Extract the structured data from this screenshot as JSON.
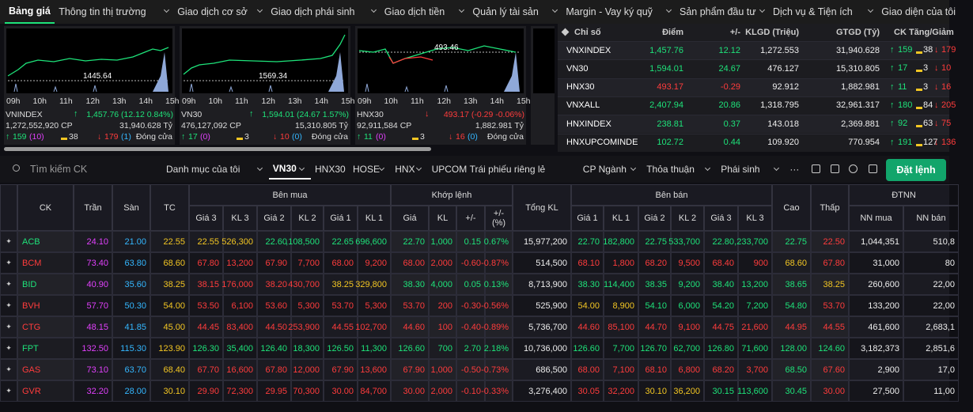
{
  "nav": [
    "Bảng giá",
    "Thông tin thị trường",
    "Giao dịch cơ sở",
    "Giao dịch phái sinh",
    "Giao dịch tiền",
    "Quản lý tài sản",
    "Margin - Vay ký quỹ",
    "Sản phẩm đầu tư",
    "Dịch vụ & Tiện ích",
    "Giao diện của tôi"
  ],
  "hours": [
    "09h",
    "10h",
    "11h",
    "12h",
    "13h",
    "14h",
    "15h"
  ],
  "panels": [
    {
      "name": "VNINDEX",
      "value": "1,457.76 (12.12 0.84%)",
      "dir": "up",
      "volume": "1,272,552,920 CP",
      "traded": "31,940.628 Tỷ",
      "up": "159",
      "ceil": "(10)",
      "flat": "38",
      "down": "179",
      "floor": "(1)",
      "status": "Đóng cửa",
      "ref": "1445.64"
    },
    {
      "name": "VN30",
      "value": "1,594.01 (24.67 1.57%)",
      "dir": "up",
      "volume": "476,127,092 CP",
      "traded": "15,310.805 Tỷ",
      "up": "17",
      "ceil": "(0)",
      "flat": "3",
      "down": "10",
      "floor": "(0)",
      "status": "Đóng cửa",
      "ref": "1569.34"
    },
    {
      "name": "HNX30",
      "value": "493.17 (-0.29 -0.06%)",
      "dir": "down",
      "volume": "92,911,584 CP",
      "traded": "1,882.981 Tỷ",
      "up": "11",
      "ceil": "(0)",
      "flat": "3",
      "down": "16",
      "floor": "(0)",
      "status": "Đóng cửa",
      "ref": "493.46"
    }
  ],
  "indices": {
    "header": [
      "Chỉ số",
      "Điểm",
      "+/-",
      "KLGD (Triệu)",
      "GTGD (Tỷ)",
      "CK Tăng/Giảm"
    ],
    "rows": [
      [
        "VNXINDEX",
        "1,457.76",
        "12.12",
        "1,272.553",
        "31,940.628",
        "159",
        "38",
        "179"
      ],
      [
        "VN30",
        "1,594.01",
        "24.67",
        "476.127",
        "15,310.805",
        "17",
        "3",
        "10"
      ],
      [
        "HNX30",
        "493.17",
        "-0.29",
        "92.912",
        "1,882.981",
        "11",
        "3",
        "16"
      ],
      [
        "VNXALL",
        "2,407.94",
        "20.86",
        "1,318.795",
        "32,961.317",
        "180",
        "84",
        "205"
      ],
      [
        "HNXINDEX",
        "238.81",
        "0.37",
        "143.018",
        "2,369.881",
        "92",
        "63",
        "75"
      ],
      [
        "HNXUPCOMINDE",
        "102.72",
        "0.44",
        "109.920",
        "770.954",
        "191",
        "127",
        "136"
      ]
    ]
  },
  "toolbar": {
    "search": "Tìm kiếm CK",
    "tabs": [
      "Danh mục của tôi",
      "VN30",
      "HNX30",
      "HOSE",
      "HNX",
      "UPCOM",
      "Trái phiếu riêng lẻ",
      "CP Ngành",
      "Thỏa thuận",
      "Phái sinh",
      "···"
    ],
    "active": "VN30",
    "order": "Đặt lệnh"
  },
  "table": {
    "headers": {
      "ck": "CK",
      "ceil": "Trần",
      "floor": "Sàn",
      "ref": "TC",
      "bid": "Bên mua",
      "bidCols": [
        "Giá 3",
        "KL 3",
        "Giá 2",
        "KL 2",
        "Giá 1",
        "KL 1"
      ],
      "match": "Khớp lệnh",
      "matchCols": [
        "Giá",
        "KL",
        "+/-",
        "+/-\n(%)"
      ],
      "total": "Tổng KL",
      "ask": "Bên bán",
      "askCols": [
        "Giá 1",
        "KL 1",
        "Giá 2",
        "KL 2",
        "Giá 3",
        "KL 3"
      ],
      "high": "Cao",
      "low": "Thấp",
      "foreign": "ĐTNN",
      "foreignCols": [
        "NN mua",
        "NN bán"
      ]
    },
    "rows": [
      {
        "ck": "ACB",
        "ceil": "24.10",
        "floor": "21.00",
        "ref": "22.55",
        "bid": [
          "22.55",
          "526,300",
          "22.60",
          ",108,500",
          "22.65",
          "696,600"
        ],
        "match": [
          "22.70",
          "1,000",
          "0.15",
          "0.67%"
        ],
        "total": "15,977,200",
        "ask": [
          "22.70",
          "182,800",
          "22.75",
          "533,700",
          "22.80",
          ",233,700"
        ],
        "high": "22.75",
        "low": "22.50",
        "foreign": [
          "1,044,351",
          "510,8"
        ]
      },
      {
        "ck": "BCM",
        "ceil": "73.40",
        "floor": "63.80",
        "ref": "68.60",
        "bid": [
          "67.80",
          "13,200",
          "67.90",
          "7,700",
          "68.00",
          "9,200"
        ],
        "match": [
          "68.00",
          "2,000",
          "-0.60",
          "-0.87%"
        ],
        "total": "514,500",
        "ask": [
          "68.10",
          "1,800",
          "68.20",
          "9,500",
          "68.40",
          "900"
        ],
        "high": "68.60",
        "low": "67.80",
        "foreign": [
          "31,000",
          "80"
        ]
      },
      {
        "ck": "BID",
        "ceil": "40.90",
        "floor": "35.60",
        "ref": "38.25",
        "bid": [
          "38.15",
          "176,000",
          "38.20",
          "430,700",
          "38.25",
          "329,800"
        ],
        "match": [
          "38.30",
          "4,000",
          "0.05",
          "0.13%"
        ],
        "total": "8,713,900",
        "ask": [
          "38.30",
          "114,400",
          "38.35",
          "9,200",
          "38.40",
          "13,200"
        ],
        "high": "38.65",
        "low": "38.25",
        "foreign": [
          "260,600",
          "22,00"
        ]
      },
      {
        "ck": "BVH",
        "ceil": "57.70",
        "floor": "50.30",
        "ref": "54.00",
        "bid": [
          "53.50",
          "6,100",
          "53.60",
          "5,300",
          "53.70",
          "5,300"
        ],
        "match": [
          "53.70",
          "200",
          "-0.30",
          "-0.56%"
        ],
        "total": "525,900",
        "ask": [
          "54.00",
          "8,900",
          "54.10",
          "6,000",
          "54.20",
          "7,200"
        ],
        "high": "54.80",
        "low": "53.70",
        "foreign": [
          "133,200",
          "22,00"
        ]
      },
      {
        "ck": "CTG",
        "ceil": "48.15",
        "floor": "41.85",
        "ref": "45.00",
        "bid": [
          "44.45",
          "83,400",
          "44.50",
          "253,900",
          "44.55",
          "102,700"
        ],
        "match": [
          "44.60",
          "100",
          "-0.40",
          "-0.89%"
        ],
        "total": "5,736,700",
        "ask": [
          "44.60",
          "85,100",
          "44.70",
          "9,100",
          "44.75",
          "21,600"
        ],
        "high": "44.95",
        "low": "44.55",
        "foreign": [
          "461,600",
          "2,683,1"
        ]
      },
      {
        "ck": "FPT",
        "ceil": "132.50",
        "floor": "115.30",
        "ref": "123.90",
        "bid": [
          "126.30",
          "35,400",
          "126.40",
          "18,300",
          "126.50",
          "11,300"
        ],
        "match": [
          "126.60",
          "700",
          "2.70",
          "2.18%"
        ],
        "total": "10,736,000",
        "ask": [
          "126.60",
          "7,700",
          "126.70",
          "62,700",
          "126.80",
          "71,600"
        ],
        "high": "128.00",
        "low": "124.60",
        "foreign": [
          "3,182,373",
          "2,851,6"
        ]
      },
      {
        "ck": "GAS",
        "ceil": "73.10",
        "floor": "63.70",
        "ref": "68.40",
        "bid": [
          "67.70",
          "16,600",
          "67.80",
          "12,000",
          "67.90",
          "13,600"
        ],
        "match": [
          "67.90",
          "1,000",
          "-0.50",
          "-0.73%"
        ],
        "total": "686,500",
        "ask": [
          "68.00",
          "7,100",
          "68.10",
          "6,800",
          "68.20",
          "3,700"
        ],
        "high": "68.50",
        "low": "67.60",
        "foreign": [
          "2,900",
          "17,0"
        ]
      },
      {
        "ck": "GVR",
        "ceil": "32.20",
        "floor": "28.00",
        "ref": "30.10",
        "bid": [
          "29.90",
          "72,300",
          "29.95",
          "70,300",
          "30.00",
          "84,700"
        ],
        "match": [
          "30.00",
          "2,000",
          "-0.10",
          "-0.33%"
        ],
        "total": "3,276,400",
        "ask": [
          "30.05",
          "32,200",
          "30.10",
          "36,200",
          "30.15",
          "113,600"
        ],
        "high": "30.45",
        "low": "30.00",
        "foreign": [
          "27,500",
          "11,00"
        ]
      }
    ]
  }
}
